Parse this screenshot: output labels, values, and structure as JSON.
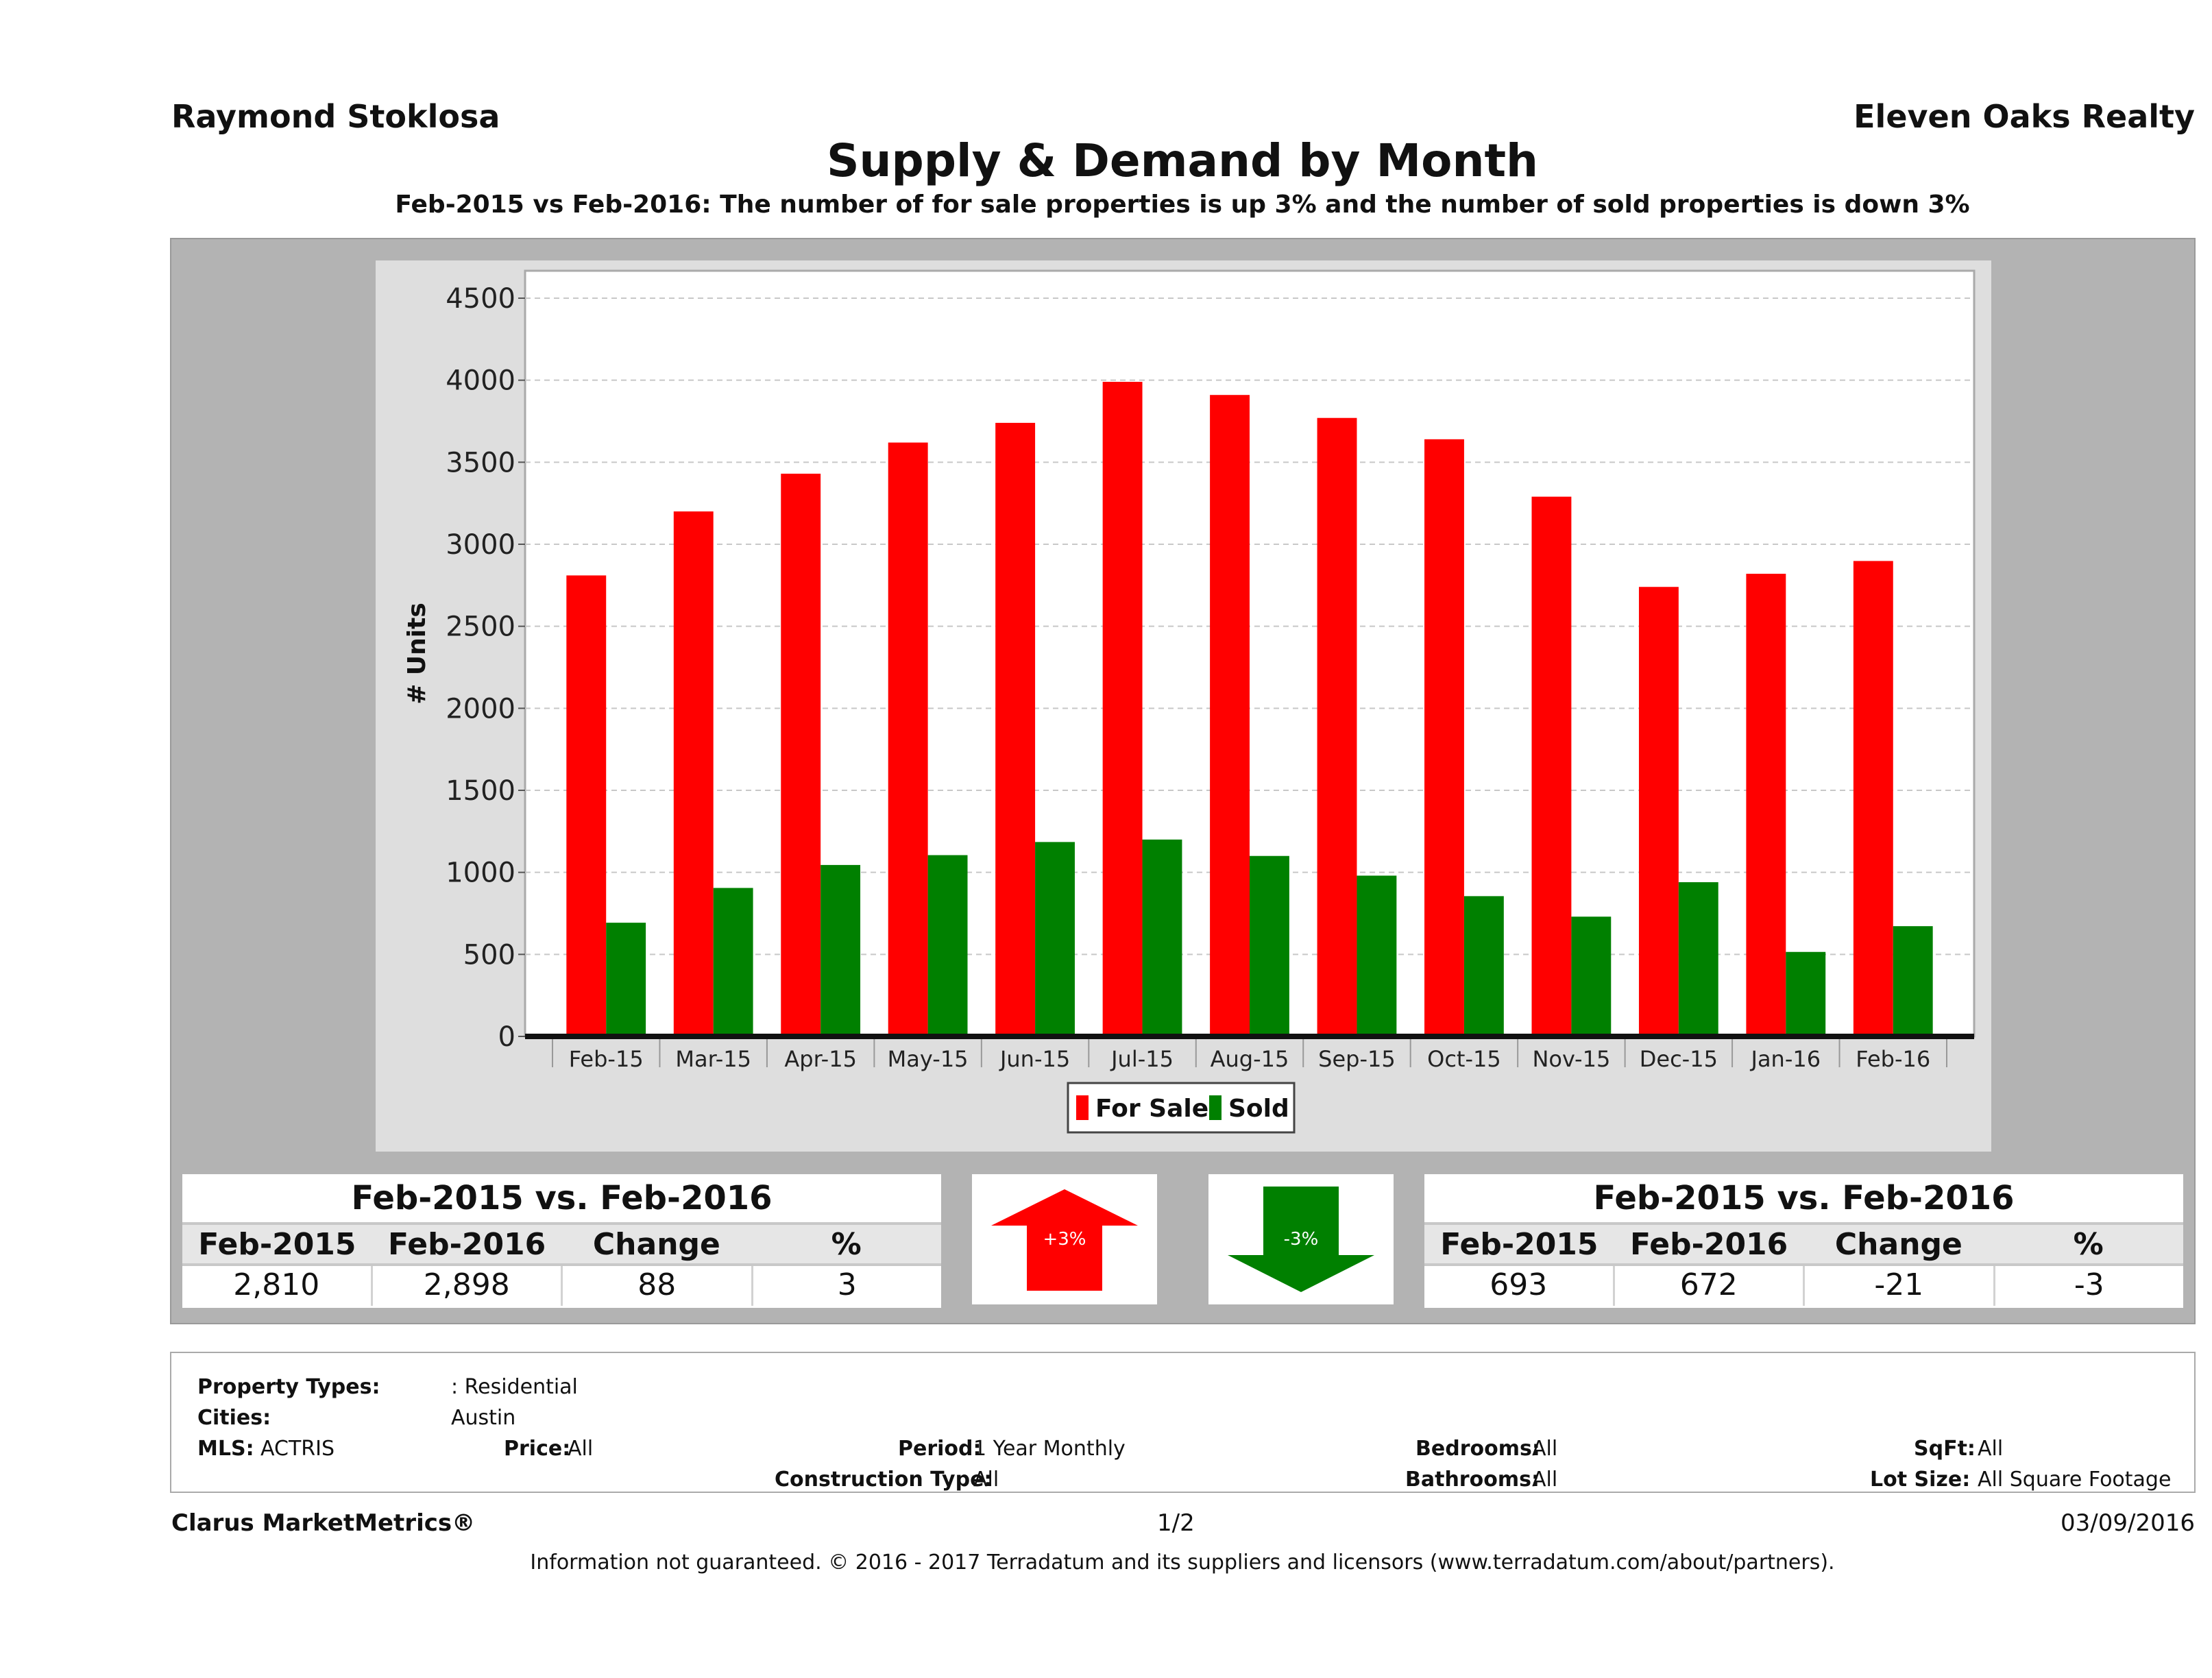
{
  "header": {
    "agent": "Raymond Stoklosa",
    "company": "Eleven Oaks Realty",
    "title": "Supply & Demand by Month",
    "subtitle": "Feb-2015 vs Feb-2016: The number of for sale properties is up 3% and the number of sold properties is down 3%"
  },
  "chart_data": {
    "type": "bar",
    "title": "Supply & Demand by Month",
    "xlabel": "",
    "ylabel": "# Units",
    "ylim": [
      0,
      4500
    ],
    "yticks": [
      0,
      500,
      1000,
      1500,
      2000,
      2500,
      3000,
      3500,
      4000,
      4500
    ],
    "grid": true,
    "legend_position": "bottom-center",
    "categories": [
      "Feb-15",
      "Mar-15",
      "Apr-15",
      "May-15",
      "Jun-15",
      "Jul-15",
      "Aug-15",
      "Sep-15",
      "Oct-15",
      "Nov-15",
      "Dec-15",
      "Jan-16",
      "Feb-16"
    ],
    "series": [
      {
        "name": "For Sale",
        "color": "#ff0000",
        "values": [
          2810,
          3200,
          3430,
          3620,
          3740,
          3990,
          3910,
          3770,
          3640,
          3290,
          2740,
          2820,
          2898
        ]
      },
      {
        "name": "Sold",
        "color": "#008000",
        "values": [
          693,
          905,
          1045,
          1105,
          1185,
          1200,
          1100,
          980,
          855,
          730,
          940,
          515,
          672
        ]
      }
    ]
  },
  "stats_for_sale": {
    "title": "Feb-2015 vs. Feb-2016",
    "headers": [
      "Feb-2015",
      "Feb-2016",
      "Change",
      "%"
    ],
    "values": [
      "2,810",
      "2,898",
      "88",
      "3"
    ]
  },
  "stats_sold": {
    "title": "Feb-2015 vs. Feb-2016",
    "headers": [
      "Feb-2015",
      "Feb-2016",
      "Change",
      "%"
    ],
    "values": [
      "693",
      "672",
      "-21",
      "-3"
    ]
  },
  "arrows": {
    "up_label": "+3%",
    "down_label": "-3%",
    "up_color": "#ff0000",
    "down_color": "#008000"
  },
  "criteria": {
    "property_types_label": "Property Types:",
    "property_types_value": ": Residential",
    "cities_label": "Cities:",
    "cities_value": "Austin",
    "mls_label": "MLS:",
    "mls_value": "ACTRIS",
    "price_label": "Price:",
    "price_value": "All",
    "period_label": "Period:",
    "period_value": "1 Year Monthly",
    "construction_label": "Construction Type:",
    "construction_value": "All",
    "bedrooms_label": "Bedrooms:",
    "bedrooms_value": "All",
    "bathrooms_label": "Bathrooms:",
    "bathrooms_value": "All",
    "sqft_label": "SqFt:",
    "sqft_value": "All",
    "lot_label": "Lot Size:",
    "lot_value": "All Square Footage"
  },
  "footer": {
    "brand": "Clarus MarketMetrics®",
    "page": "1/2",
    "date": "03/09/2016",
    "disclaimer": "Information not guaranteed. © 2016 - 2017 Terradatum and its suppliers and licensors (www.terradatum.com/about/partners)."
  }
}
